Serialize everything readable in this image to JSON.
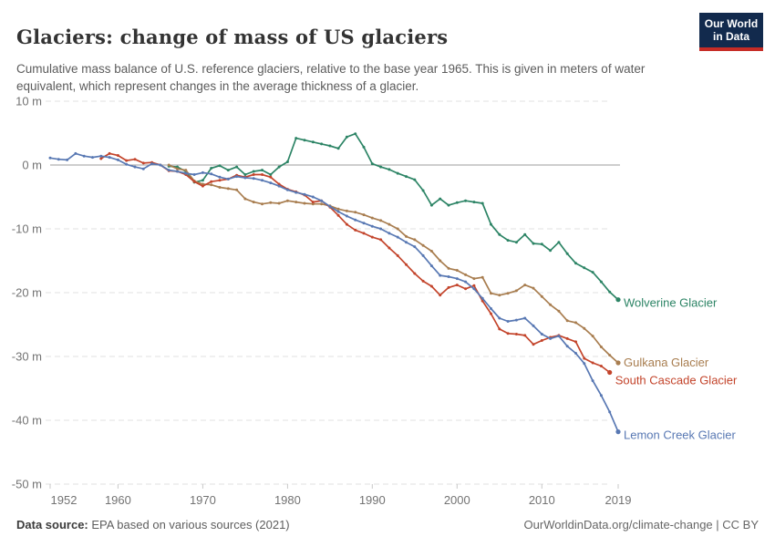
{
  "header": {
    "title": "Glaciers: change of mass of US glaciers",
    "subtitle": "Cumulative mass balance of U.S. reference glaciers, relative to the base year 1965. This is given in meters of water equivalent, which represent changes in the average thickness of a glacier.",
    "logo": {
      "line1": "Our World",
      "line2": "in Data"
    }
  },
  "footer": {
    "source_label": "Data source:",
    "source_text": " EPA based on various sources (2021)",
    "right_text": "OurWorldinData.org/climate-change | CC BY"
  },
  "colors": {
    "wolverine": "#2C8465",
    "gulkana": "#A87D4F",
    "south_cascade": "#C3442B",
    "lemon_creek": "#5878B3",
    "zero_line": "#9E9E9E",
    "gridline": "#E2E2E2",
    "tick_text": "#737373",
    "logo_bg": "#122A4D",
    "logo_bar": "#C62C26"
  },
  "chart_data": {
    "type": "line",
    "title": "Glaciers: change of mass of US glaciers",
    "xlabel": "",
    "ylabel": "meters of water equivalent",
    "x_range": [
      1952,
      2019
    ],
    "y_range": [
      -50,
      10
    ],
    "grid": "horizontal-dashed",
    "zero_line": true,
    "legend_position": "end-of-line-labels",
    "x_ticks": [
      1952,
      1960,
      1970,
      1980,
      1990,
      2000,
      2010,
      2019
    ],
    "y_ticks": [
      {
        "value": 10,
        "label": "10 m"
      },
      {
        "value": 0,
        "label": "0 m"
      },
      {
        "value": -10,
        "label": "-10 m"
      },
      {
        "value": -20,
        "label": "-20 m"
      },
      {
        "value": -30,
        "label": "-30 m"
      },
      {
        "value": -40,
        "label": "-40 m"
      },
      {
        "value": -50,
        "label": "-50 m"
      }
    ],
    "series": [
      {
        "name": "Wolverine Glacier",
        "color": "#2C8465",
        "label_dy": 4,
        "points": [
          [
            1966,
            -0.2
          ],
          [
            1967,
            -0.3
          ],
          [
            1968,
            -1.0
          ],
          [
            1969,
            -2.7
          ],
          [
            1970,
            -2.4
          ],
          [
            1971,
            -0.5
          ],
          [
            1972,
            -0.1
          ],
          [
            1973,
            -0.8
          ],
          [
            1974,
            -0.3
          ],
          [
            1975,
            -1.5
          ],
          [
            1976,
            -1.0
          ],
          [
            1977,
            -0.8
          ],
          [
            1978,
            -1.5
          ],
          [
            1979,
            -0.3
          ],
          [
            1980,
            0.5
          ],
          [
            1981,
            4.2
          ],
          [
            1982,
            3.9
          ],
          [
            1983,
            3.6
          ],
          [
            1984,
            3.3
          ],
          [
            1985,
            3.0
          ],
          [
            1986,
            2.6
          ],
          [
            1987,
            4.4
          ],
          [
            1988,
            4.9
          ],
          [
            1989,
            2.8
          ],
          [
            1990,
            0.2
          ],
          [
            1991,
            -0.3
          ],
          [
            1992,
            -0.7
          ],
          [
            1993,
            -1.3
          ],
          [
            1994,
            -1.8
          ],
          [
            1995,
            -2.3
          ],
          [
            1996,
            -4.0
          ],
          [
            1997,
            -6.3
          ],
          [
            1998,
            -5.3
          ],
          [
            1999,
            -6.3
          ],
          [
            2000,
            -5.9
          ],
          [
            2001,
            -5.6
          ],
          [
            2002,
            -5.8
          ],
          [
            2003,
            -6.0
          ],
          [
            2004,
            -9.3
          ],
          [
            2005,
            -10.9
          ],
          [
            2006,
            -11.8
          ],
          [
            2007,
            -12.1
          ],
          [
            2008,
            -10.9
          ],
          [
            2009,
            -12.3
          ],
          [
            2010,
            -12.4
          ],
          [
            2011,
            -13.4
          ],
          [
            2012,
            -12.1
          ],
          [
            2013,
            -13.9
          ],
          [
            2014,
            -15.4
          ],
          [
            2015,
            -16.1
          ],
          [
            2016,
            -16.8
          ],
          [
            2017,
            -18.3
          ],
          [
            2018,
            -19.9
          ],
          [
            2019,
            -21.1
          ]
        ]
      },
      {
        "name": "Gulkana Glacier",
        "color": "#A87D4F",
        "label_dy": 0,
        "points": [
          [
            1966,
            0.0
          ],
          [
            1967,
            -0.6
          ],
          [
            1968,
            -0.8
          ],
          [
            1969,
            -2.5
          ],
          [
            1970,
            -3.0
          ],
          [
            1971,
            -3.1
          ],
          [
            1972,
            -3.5
          ],
          [
            1973,
            -3.7
          ],
          [
            1974,
            -3.9
          ],
          [
            1975,
            -5.3
          ],
          [
            1976,
            -5.8
          ],
          [
            1977,
            -6.1
          ],
          [
            1978,
            -5.9
          ],
          [
            1979,
            -6.0
          ],
          [
            1980,
            -5.6
          ],
          [
            1981,
            -5.8
          ],
          [
            1982,
            -6.0
          ],
          [
            1983,
            -6.1
          ],
          [
            1984,
            -6.1
          ],
          [
            1985,
            -6.4
          ],
          [
            1986,
            -6.9
          ],
          [
            1987,
            -7.2
          ],
          [
            1988,
            -7.4
          ],
          [
            1989,
            -7.8
          ],
          [
            1990,
            -8.3
          ],
          [
            1991,
            -8.7
          ],
          [
            1992,
            -9.3
          ],
          [
            1993,
            -10.0
          ],
          [
            1994,
            -11.2
          ],
          [
            1995,
            -11.7
          ],
          [
            1996,
            -12.6
          ],
          [
            1997,
            -13.5
          ],
          [
            1998,
            -15.0
          ],
          [
            1999,
            -16.2
          ],
          [
            2000,
            -16.5
          ],
          [
            2001,
            -17.2
          ],
          [
            2002,
            -17.8
          ],
          [
            2003,
            -17.6
          ],
          [
            2004,
            -20.1
          ],
          [
            2005,
            -20.4
          ],
          [
            2006,
            -20.1
          ],
          [
            2007,
            -19.7
          ],
          [
            2008,
            -18.8
          ],
          [
            2009,
            -19.3
          ],
          [
            2010,
            -20.6
          ],
          [
            2011,
            -21.9
          ],
          [
            2012,
            -22.9
          ],
          [
            2013,
            -24.4
          ],
          [
            2014,
            -24.7
          ],
          [
            2015,
            -25.6
          ],
          [
            2016,
            -26.8
          ],
          [
            2017,
            -28.5
          ],
          [
            2018,
            -29.8
          ],
          [
            2019,
            -31.0
          ]
        ]
      },
      {
        "name": "South Cascade Glacier",
        "color": "#C3442B",
        "label_dy": 9,
        "points": [
          [
            1958,
            1.0
          ],
          [
            1959,
            1.8
          ],
          [
            1960,
            1.5
          ],
          [
            1961,
            0.7
          ],
          [
            1962,
            0.9
          ],
          [
            1963,
            0.3
          ],
          [
            1964,
            0.4
          ],
          [
            1965,
            0.0
          ],
          [
            1966,
            -0.9
          ],
          [
            1967,
            -1.0
          ],
          [
            1968,
            -1.5
          ],
          [
            1969,
            -2.6
          ],
          [
            1970,
            -3.3
          ],
          [
            1971,
            -2.6
          ],
          [
            1972,
            -2.4
          ],
          [
            1973,
            -2.2
          ],
          [
            1974,
            -1.6
          ],
          [
            1975,
            -1.9
          ],
          [
            1976,
            -1.5
          ],
          [
            1977,
            -1.5
          ],
          [
            1978,
            -1.9
          ],
          [
            1979,
            -3.0
          ],
          [
            1980,
            -3.8
          ],
          [
            1981,
            -4.2
          ],
          [
            1982,
            -4.7
          ],
          [
            1983,
            -5.8
          ],
          [
            1984,
            -5.6
          ],
          [
            1985,
            -6.6
          ],
          [
            1986,
            -7.9
          ],
          [
            1987,
            -9.3
          ],
          [
            1988,
            -10.2
          ],
          [
            1989,
            -10.7
          ],
          [
            1990,
            -11.3
          ],
          [
            1991,
            -11.7
          ],
          [
            1992,
            -13.0
          ],
          [
            1993,
            -14.2
          ],
          [
            1994,
            -15.6
          ],
          [
            1995,
            -17.0
          ],
          [
            1996,
            -18.2
          ],
          [
            1997,
            -19.0
          ],
          [
            1998,
            -20.4
          ],
          [
            1999,
            -19.2
          ],
          [
            2000,
            -18.8
          ],
          [
            2001,
            -19.4
          ],
          [
            2002,
            -18.9
          ],
          [
            2003,
            -21.3
          ],
          [
            2004,
            -23.3
          ],
          [
            2005,
            -25.7
          ],
          [
            2006,
            -26.4
          ],
          [
            2007,
            -26.5
          ],
          [
            2008,
            -26.7
          ],
          [
            2009,
            -28.1
          ],
          [
            2010,
            -27.5
          ],
          [
            2011,
            -27.0
          ],
          [
            2012,
            -26.7
          ],
          [
            2013,
            -27.2
          ],
          [
            2014,
            -27.7
          ],
          [
            2015,
            -30.3
          ],
          [
            2016,
            -31.0
          ],
          [
            2017,
            -31.5
          ],
          [
            2018,
            -32.5
          ]
        ]
      },
      {
        "name": "Lemon Creek Glacier",
        "color": "#5878B3",
        "label_dy": 4,
        "points": [
          [
            1952,
            1.1
          ],
          [
            1953,
            0.9
          ],
          [
            1954,
            0.8
          ],
          [
            1955,
            1.8
          ],
          [
            1956,
            1.4
          ],
          [
            1957,
            1.2
          ],
          [
            1958,
            1.4
          ],
          [
            1959,
            1.2
          ],
          [
            1960,
            0.8
          ],
          [
            1961,
            0.1
          ],
          [
            1962,
            -0.3
          ],
          [
            1963,
            -0.6
          ],
          [
            1964,
            0.2
          ],
          [
            1965,
            0.0
          ],
          [
            1966,
            -0.8
          ],
          [
            1967,
            -1.0
          ],
          [
            1968,
            -1.3
          ],
          [
            1969,
            -1.5
          ],
          [
            1970,
            -1.2
          ],
          [
            1971,
            -1.4
          ],
          [
            1972,
            -1.9
          ],
          [
            1973,
            -2.2
          ],
          [
            1974,
            -1.8
          ],
          [
            1975,
            -2.0
          ],
          [
            1976,
            -2.1
          ],
          [
            1977,
            -2.4
          ],
          [
            1978,
            -2.8
          ],
          [
            1979,
            -3.3
          ],
          [
            1980,
            -3.9
          ],
          [
            1981,
            -4.3
          ],
          [
            1982,
            -4.6
          ],
          [
            1983,
            -5.0
          ],
          [
            1984,
            -5.6
          ],
          [
            1985,
            -6.5
          ],
          [
            1986,
            -7.3
          ],
          [
            1987,
            -8.0
          ],
          [
            1988,
            -8.6
          ],
          [
            1989,
            -9.1
          ],
          [
            1990,
            -9.6
          ],
          [
            1991,
            -10.0
          ],
          [
            1992,
            -10.7
          ],
          [
            1993,
            -11.3
          ],
          [
            1994,
            -12.1
          ],
          [
            1995,
            -12.8
          ],
          [
            1996,
            -14.2
          ],
          [
            1997,
            -15.8
          ],
          [
            1998,
            -17.3
          ],
          [
            1999,
            -17.5
          ],
          [
            2000,
            -17.8
          ],
          [
            2001,
            -18.3
          ],
          [
            2002,
            -19.4
          ],
          [
            2003,
            -20.9
          ],
          [
            2004,
            -22.5
          ],
          [
            2005,
            -24.0
          ],
          [
            2006,
            -24.5
          ],
          [
            2007,
            -24.3
          ],
          [
            2008,
            -24.0
          ],
          [
            2009,
            -25.2
          ],
          [
            2010,
            -26.5
          ],
          [
            2011,
            -27.2
          ],
          [
            2012,
            -26.8
          ],
          [
            2013,
            -28.4
          ],
          [
            2014,
            -29.5
          ],
          [
            2015,
            -31.1
          ],
          [
            2016,
            -33.8
          ],
          [
            2017,
            -36.1
          ],
          [
            2018,
            -38.7
          ],
          [
            2019,
            -41.8
          ]
        ]
      }
    ]
  }
}
